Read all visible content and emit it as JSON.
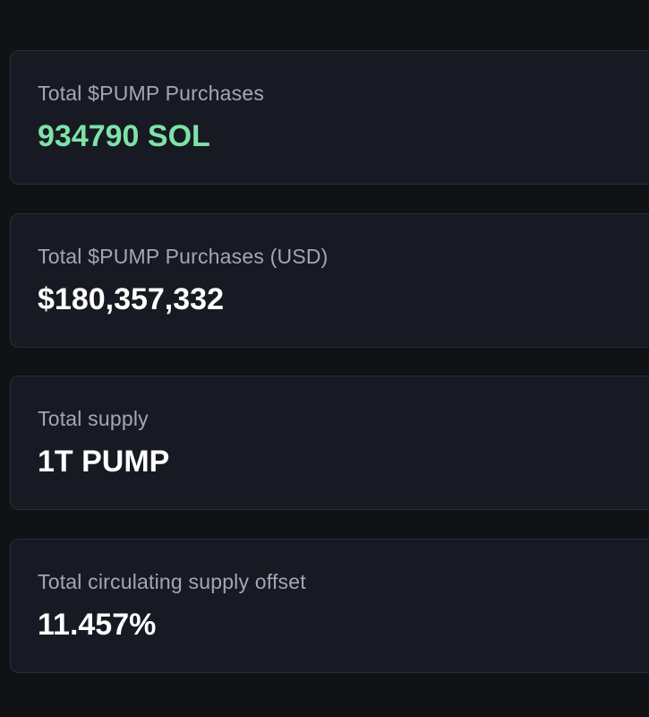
{
  "stats": {
    "cards": [
      {
        "label": "Total $PUMP Purchases",
        "value": "934790 SOL",
        "value_color": "#7ee2a8"
      },
      {
        "label": "Total $PUMP Purchases (USD)",
        "value": "$180,357,332",
        "value_color": "#ffffff"
      },
      {
        "label": "Total supply",
        "value": "1T PUMP",
        "value_color": "#ffffff"
      },
      {
        "label": "Total circulating supply offset",
        "value": "11.457%",
        "value_color": "#ffffff"
      }
    ]
  },
  "theme": {
    "background": "#111216",
    "card_background": "#171a22",
    "card_border": "#2a2e38",
    "label_color": "#a3a7b1"
  }
}
